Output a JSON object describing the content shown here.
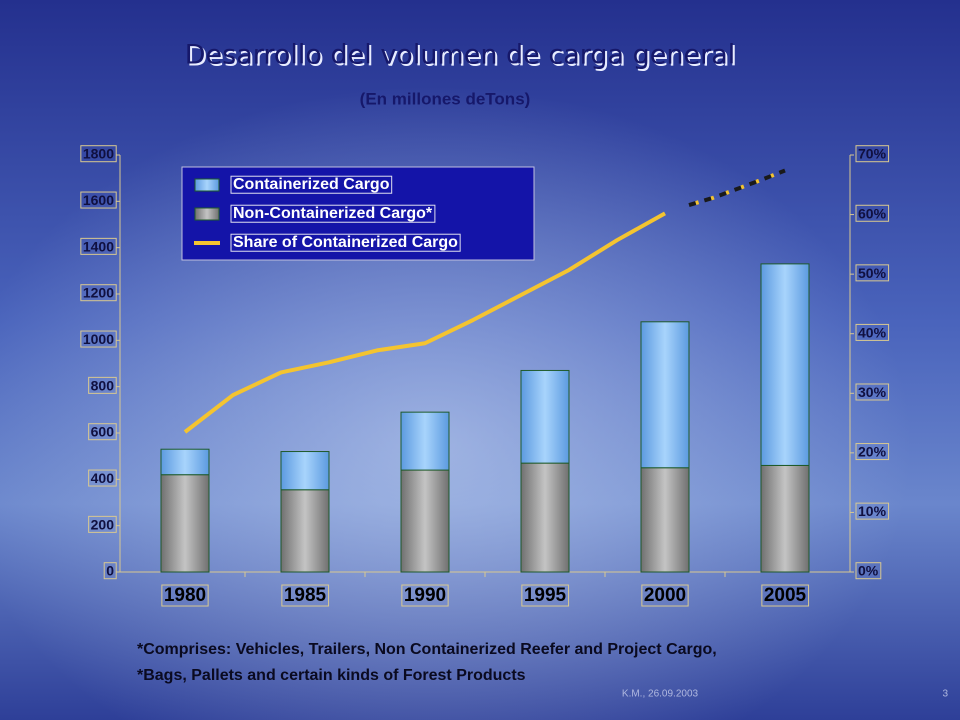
{
  "chart_data": {
    "type": "bar",
    "title": "Desarrollo del volumen de carga general",
    "subtitle": "(En millones deTons)",
    "categories": [
      "1980",
      "1985",
      "1990",
      "1995",
      "2000",
      "2005"
    ],
    "stacked": true,
    "series": [
      {
        "name": "Containerized Cargo",
        "color": "#8ec4f4",
        "values": [
          110,
          165,
          250,
          400,
          630,
          870
        ]
      },
      {
        "name": "Non-Containerized Cargo*",
        "color": "#9a9a9a",
        "values": [
          420,
          355,
          440,
          470,
          450,
          460
        ]
      },
      {
        "name": "Share of Containerized Cargo",
        "type": "line",
        "axis": "y2",
        "color": "#f4c430",
        "x": [
          1980,
          1982,
          1984,
          1986,
          1988,
          1990,
          1992,
          1994,
          1996,
          1998,
          2000,
          2001,
          2002,
          2003,
          2004,
          2005
        ],
        "values": [
          23.5,
          29.7,
          33.5,
          35.2,
          37.2,
          38.4,
          42.3,
          46.5,
          50.7,
          55.7,
          60.2,
          61.6,
          62.8,
          64.3,
          65.8,
          67.4
        ],
        "dash_from_x": 2001
      }
    ],
    "ylim": [
      0,
      1800
    ],
    "yticks": [
      0,
      200,
      400,
      600,
      800,
      1000,
      1200,
      1400,
      1600,
      1800
    ],
    "y2lim": [
      0,
      70
    ],
    "y2ticks": [
      {
        "value": 0,
        "label": "0%"
      },
      {
        "value": 10,
        "label": "10%"
      },
      {
        "value": 20,
        "label": "20%"
      },
      {
        "value": 30,
        "label": "30%"
      },
      {
        "value": 40,
        "label": "40%"
      },
      {
        "value": 50,
        "label": "50%"
      },
      {
        "value": 60,
        "label": "60%"
      },
      {
        "value": 70,
        "label": "70%"
      }
    ],
    "legend": "top-left",
    "notes": [
      "*Comprises: Vehicles, Trailers, Non Containerized Reefer and Project Cargo,",
      "*Bags, Pallets and certain kinds of Forest Products"
    ],
    "footer": "K.M., 26.09.2003",
    "page_number": "3"
  }
}
